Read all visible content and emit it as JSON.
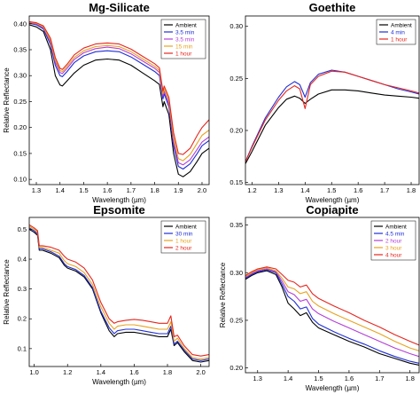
{
  "chart_data": [
    {
      "type": "line",
      "title": "Mg-Silicate",
      "xlabel": "Wavelength (µm)",
      "ylabel": "Relative Reflectance",
      "xlim": [
        1.27,
        2.03
      ],
      "ylim": [
        0.09,
        0.415
      ],
      "xticks": [
        1.3,
        1.4,
        1.5,
        1.6,
        1.7,
        1.8,
        1.9,
        2.0
      ],
      "xtick_labels": [
        "1.3",
        "1.4",
        "1.5",
        "1.6",
        "1.7",
        "1.8",
        "1.9",
        "2.0"
      ],
      "yticks": [
        0.1,
        0.15,
        0.2,
        0.25,
        0.3,
        0.35,
        0.4
      ],
      "ytick_labels": [
        "0.10",
        "0.15",
        "0.20",
        "0.25",
        "0.30",
        "0.35",
        "0.40"
      ],
      "legend_position": "top-right",
      "series": [
        {
          "name": "Ambient",
          "color": "#000000",
          "x": [
            1.27,
            1.3,
            1.33,
            1.36,
            1.38,
            1.4,
            1.41,
            1.43,
            1.46,
            1.5,
            1.55,
            1.6,
            1.65,
            1.7,
            1.75,
            1.8,
            1.82,
            1.835,
            1.84,
            1.86,
            1.88,
            1.9,
            1.92,
            1.95,
            1.98,
            2.0,
            2.03
          ],
          "y": [
            0.398,
            0.394,
            0.385,
            0.35,
            0.3,
            0.282,
            0.28,
            0.29,
            0.305,
            0.32,
            0.33,
            0.332,
            0.33,
            0.32,
            0.305,
            0.29,
            0.283,
            0.24,
            0.25,
            0.225,
            0.15,
            0.11,
            0.105,
            0.115,
            0.135,
            0.15,
            0.16
          ]
        },
        {
          "name": "3.5 min",
          "color": "#1f2fd6",
          "x": [
            1.27,
            1.3,
            1.33,
            1.36,
            1.38,
            1.4,
            1.41,
            1.43,
            1.46,
            1.5,
            1.55,
            1.6,
            1.65,
            1.7,
            1.75,
            1.8,
            1.82,
            1.835,
            1.84,
            1.86,
            1.88,
            1.9,
            1.92,
            1.95,
            1.98,
            2.0,
            2.03
          ],
          "y": [
            0.401,
            0.398,
            0.39,
            0.36,
            0.32,
            0.3,
            0.298,
            0.308,
            0.325,
            0.338,
            0.346,
            0.348,
            0.346,
            0.336,
            0.322,
            0.308,
            0.3,
            0.255,
            0.265,
            0.24,
            0.165,
            0.125,
            0.12,
            0.13,
            0.15,
            0.165,
            0.175
          ]
        },
        {
          "name": "3.5 min",
          "color": "#b23fd8",
          "x": [
            1.27,
            1.3,
            1.33,
            1.36,
            1.38,
            1.4,
            1.41,
            1.43,
            1.46,
            1.5,
            1.55,
            1.6,
            1.65,
            1.7,
            1.75,
            1.8,
            1.82,
            1.835,
            1.84,
            1.86,
            1.88,
            1.9,
            1.92,
            1.95,
            1.98,
            2.0,
            2.03
          ],
          "y": [
            0.402,
            0.4,
            0.392,
            0.365,
            0.326,
            0.306,
            0.304,
            0.314,
            0.331,
            0.344,
            0.352,
            0.355,
            0.352,
            0.342,
            0.328,
            0.314,
            0.306,
            0.26,
            0.27,
            0.246,
            0.172,
            0.132,
            0.128,
            0.138,
            0.158,
            0.172,
            0.182
          ]
        },
        {
          "name": "15 min",
          "color": "#e8a21f",
          "x": [
            1.27,
            1.3,
            1.33,
            1.36,
            1.38,
            1.4,
            1.41,
            1.43,
            1.46,
            1.5,
            1.55,
            1.6,
            1.65,
            1.7,
            1.75,
            1.8,
            1.82,
            1.835,
            1.84,
            1.86,
            1.88,
            1.9,
            1.92,
            1.95,
            1.98,
            2.0,
            2.03
          ],
          "y": [
            0.403,
            0.401,
            0.394,
            0.368,
            0.33,
            0.31,
            0.308,
            0.318,
            0.335,
            0.348,
            0.356,
            0.358,
            0.356,
            0.346,
            0.332,
            0.318,
            0.31,
            0.265,
            0.275,
            0.252,
            0.18,
            0.14,
            0.136,
            0.148,
            0.17,
            0.185,
            0.195
          ]
        },
        {
          "name": "1 hour",
          "color": "#e5261d",
          "x": [
            1.27,
            1.3,
            1.33,
            1.36,
            1.38,
            1.4,
            1.41,
            1.43,
            1.46,
            1.5,
            1.55,
            1.6,
            1.65,
            1.7,
            1.75,
            1.8,
            1.82,
            1.835,
            1.84,
            1.86,
            1.88,
            1.9,
            1.92,
            1.95,
            1.98,
            2.0,
            2.03
          ],
          "y": [
            0.404,
            0.402,
            0.396,
            0.372,
            0.335,
            0.314,
            0.312,
            0.322,
            0.34,
            0.353,
            0.361,
            0.363,
            0.361,
            0.351,
            0.337,
            0.323,
            0.315,
            0.27,
            0.28,
            0.258,
            0.19,
            0.15,
            0.148,
            0.16,
            0.185,
            0.2,
            0.215
          ]
        }
      ]
    },
    {
      "type": "line",
      "title": "Goethite",
      "xlabel": "Wavelength (µm)",
      "ylabel": "",
      "xlim": [
        1.175,
        1.83
      ],
      "ylim": [
        0.148,
        0.31
      ],
      "xticks": [
        1.2,
        1.3,
        1.4,
        1.5,
        1.6,
        1.7,
        1.8
      ],
      "xtick_labels": [
        "1.2",
        "1.3",
        "1.4",
        "1.5",
        "1.6",
        "1.7",
        "1.8"
      ],
      "yticks": [
        0.15,
        0.2,
        0.25,
        0.3
      ],
      "ytick_labels": [
        "0.15",
        "0.20",
        "0.25",
        "0.30"
      ],
      "legend_position": "top-right",
      "series": [
        {
          "name": "Ambient",
          "color": "#000000",
          "x": [
            1.175,
            1.2,
            1.25,
            1.3,
            1.33,
            1.36,
            1.38,
            1.4,
            1.42,
            1.45,
            1.5,
            1.55,
            1.6,
            1.65,
            1.7,
            1.75,
            1.8,
            1.83
          ],
          "y": [
            0.168,
            0.18,
            0.205,
            0.222,
            0.23,
            0.233,
            0.231,
            0.226,
            0.23,
            0.235,
            0.239,
            0.239,
            0.238,
            0.236,
            0.234,
            0.233,
            0.232,
            0.231
          ]
        },
        {
          "name": "4 min",
          "color": "#1f2fd6",
          "x": [
            1.175,
            1.2,
            1.25,
            1.3,
            1.33,
            1.36,
            1.38,
            1.4,
            1.42,
            1.45,
            1.5,
            1.55,
            1.6,
            1.65,
            1.7,
            1.75,
            1.8,
            1.83
          ],
          "y": [
            0.17,
            0.185,
            0.212,
            0.232,
            0.242,
            0.247,
            0.244,
            0.232,
            0.246,
            0.254,
            0.258,
            0.256,
            0.252,
            0.248,
            0.244,
            0.24,
            0.237,
            0.235
          ]
        },
        {
          "name": "1 hour",
          "color": "#e5261d",
          "x": [
            1.175,
            1.2,
            1.25,
            1.3,
            1.33,
            1.36,
            1.38,
            1.4,
            1.42,
            1.45,
            1.5,
            1.55,
            1.6,
            1.65,
            1.7,
            1.75,
            1.8,
            1.83
          ],
          "y": [
            0.17,
            0.184,
            0.21,
            0.229,
            0.238,
            0.243,
            0.24,
            0.221,
            0.244,
            0.252,
            0.257,
            0.256,
            0.252,
            0.248,
            0.244,
            0.241,
            0.238,
            0.236
          ]
        }
      ]
    },
    {
      "type": "line",
      "title": "Epsomite",
      "xlabel": "Wavelength (µm)",
      "ylabel": "Relative Reflectance",
      "xlim": [
        0.97,
        2.05
      ],
      "ylim": [
        0.04,
        0.54
      ],
      "xticks": [
        1.0,
        1.2,
        1.4,
        1.6,
        1.8,
        2.0
      ],
      "xtick_labels": [
        "1.0",
        "1.2",
        "1.4",
        "1.6",
        "1.8",
        "2.0"
      ],
      "yticks": [
        0.1,
        0.2,
        0.3,
        0.4,
        0.5
      ],
      "ytick_labels": [
        "0.1",
        "0.2",
        "0.3",
        "0.4",
        "0.5"
      ],
      "legend_position": "top-right",
      "series": [
        {
          "name": "Ambient",
          "color": "#000000",
          "x": [
            0.97,
            1.0,
            1.02,
            1.03,
            1.05,
            1.1,
            1.15,
            1.18,
            1.2,
            1.25,
            1.3,
            1.35,
            1.4,
            1.45,
            1.48,
            1.5,
            1.55,
            1.6,
            1.65,
            1.7,
            1.75,
            1.8,
            1.82,
            1.84,
            1.86,
            1.9,
            1.95,
            2.0,
            2.05
          ],
          "y": [
            0.5,
            0.49,
            0.48,
            0.43,
            0.43,
            0.42,
            0.405,
            0.38,
            0.37,
            0.36,
            0.34,
            0.3,
            0.22,
            0.16,
            0.14,
            0.15,
            0.155,
            0.155,
            0.15,
            0.145,
            0.14,
            0.14,
            0.165,
            0.11,
            0.12,
            0.09,
            0.06,
            0.055,
            0.06
          ]
        },
        {
          "name": "30 min",
          "color": "#1f2fd6",
          "x": [
            0.97,
            1.0,
            1.02,
            1.03,
            1.05,
            1.1,
            1.15,
            1.18,
            1.2,
            1.25,
            1.3,
            1.35,
            1.4,
            1.45,
            1.48,
            1.5,
            1.55,
            1.6,
            1.65,
            1.7,
            1.75,
            1.8,
            1.82,
            1.84,
            1.86,
            1.9,
            1.95,
            2.0,
            2.05
          ],
          "y": [
            0.505,
            0.495,
            0.485,
            0.435,
            0.435,
            0.425,
            0.41,
            0.385,
            0.375,
            0.365,
            0.345,
            0.305,
            0.225,
            0.17,
            0.15,
            0.16,
            0.165,
            0.165,
            0.16,
            0.155,
            0.15,
            0.15,
            0.175,
            0.115,
            0.125,
            0.095,
            0.065,
            0.06,
            0.065
          ]
        },
        {
          "name": "1 hour",
          "color": "#e8a21f",
          "x": [
            0.97,
            1.0,
            1.02,
            1.03,
            1.05,
            1.1,
            1.15,
            1.18,
            1.2,
            1.25,
            1.3,
            1.35,
            1.4,
            1.45,
            1.48,
            1.5,
            1.55,
            1.6,
            1.65,
            1.7,
            1.75,
            1.8,
            1.82,
            1.84,
            1.86,
            1.9,
            1.95,
            2.0,
            2.05
          ],
          "y": [
            0.51,
            0.5,
            0.49,
            0.44,
            0.44,
            0.43,
            0.42,
            0.395,
            0.385,
            0.375,
            0.355,
            0.315,
            0.24,
            0.185,
            0.165,
            0.175,
            0.18,
            0.18,
            0.175,
            0.17,
            0.165,
            0.165,
            0.19,
            0.125,
            0.135,
            0.1,
            0.07,
            0.065,
            0.07
          ]
        },
        {
          "name": "2 hour",
          "color": "#e5261d",
          "x": [
            0.97,
            1.0,
            1.02,
            1.03,
            1.05,
            1.1,
            1.15,
            1.18,
            1.2,
            1.25,
            1.3,
            1.35,
            1.4,
            1.45,
            1.48,
            1.5,
            1.55,
            1.6,
            1.65,
            1.7,
            1.75,
            1.8,
            1.82,
            1.84,
            1.86,
            1.9,
            1.95,
            2.0,
            2.05
          ],
          "y": [
            0.515,
            0.505,
            0.495,
            0.445,
            0.445,
            0.44,
            0.43,
            0.41,
            0.4,
            0.39,
            0.37,
            0.33,
            0.255,
            0.2,
            0.185,
            0.19,
            0.195,
            0.198,
            0.195,
            0.19,
            0.185,
            0.185,
            0.21,
            0.14,
            0.145,
            0.11,
            0.08,
            0.075,
            0.08
          ]
        }
      ]
    },
    {
      "type": "line",
      "title": "Copiapite",
      "xlabel": "Wavelength (µm)",
      "ylabel": "Relative Reflectance",
      "xlim": [
        1.26,
        1.83
      ],
      "ylim": [
        0.195,
        0.358
      ],
      "xticks": [
        1.3,
        1.4,
        1.5,
        1.6,
        1.7,
        1.8
      ],
      "xtick_labels": [
        "1.3",
        "1.4",
        "1.5",
        "1.6",
        "1.7",
        "1.8"
      ],
      "yticks": [
        0.2,
        0.25,
        0.3,
        0.35
      ],
      "ytick_labels": [
        "0.20",
        "0.25",
        "0.30",
        "0.35"
      ],
      "legend_position": "top-right",
      "series": [
        {
          "name": "Ambient",
          "color": "#000000",
          "x": [
            1.26,
            1.28,
            1.3,
            1.33,
            1.36,
            1.38,
            1.4,
            1.42,
            1.44,
            1.46,
            1.48,
            1.5,
            1.55,
            1.6,
            1.65,
            1.7,
            1.75,
            1.8,
            1.83
          ],
          "y": [
            0.293,
            0.297,
            0.3,
            0.302,
            0.298,
            0.285,
            0.268,
            0.262,
            0.255,
            0.258,
            0.248,
            0.242,
            0.235,
            0.228,
            0.222,
            0.215,
            0.21,
            0.205,
            0.203
          ]
        },
        {
          "name": "4.5 min",
          "color": "#1f2fd6",
          "x": [
            1.26,
            1.28,
            1.3,
            1.33,
            1.36,
            1.38,
            1.4,
            1.42,
            1.44,
            1.46,
            1.48,
            1.5,
            1.55,
            1.6,
            1.65,
            1.7,
            1.75,
            1.8,
            1.83
          ],
          "y": [
            0.294,
            0.298,
            0.301,
            0.303,
            0.3,
            0.288,
            0.275,
            0.27,
            0.262,
            0.264,
            0.252,
            0.246,
            0.238,
            0.231,
            0.225,
            0.218,
            0.212,
            0.207,
            0.205
          ]
        },
        {
          "name": "2 hour",
          "color": "#b23fd8",
          "x": [
            1.26,
            1.28,
            1.3,
            1.33,
            1.36,
            1.38,
            1.4,
            1.42,
            1.44,
            1.46,
            1.48,
            1.5,
            1.55,
            1.6,
            1.65,
            1.7,
            1.75,
            1.8,
            1.83
          ],
          "y": [
            0.295,
            0.299,
            0.302,
            0.304,
            0.301,
            0.291,
            0.28,
            0.277,
            0.27,
            0.272,
            0.262,
            0.257,
            0.249,
            0.242,
            0.235,
            0.228,
            0.221,
            0.215,
            0.212
          ]
        },
        {
          "name": "3 hour",
          "color": "#e8a21f",
          "x": [
            1.26,
            1.28,
            1.3,
            1.33,
            1.36,
            1.38,
            1.4,
            1.42,
            1.44,
            1.46,
            1.48,
            1.5,
            1.55,
            1.6,
            1.65,
            1.7,
            1.75,
            1.8,
            1.83
          ],
          "y": [
            0.296,
            0.3,
            0.303,
            0.305,
            0.302,
            0.294,
            0.285,
            0.283,
            0.278,
            0.28,
            0.27,
            0.265,
            0.257,
            0.25,
            0.243,
            0.236,
            0.228,
            0.221,
            0.218
          ]
        },
        {
          "name": "4 hour",
          "color": "#e5261d",
          "x": [
            1.26,
            1.28,
            1.3,
            1.33,
            1.36,
            1.38,
            1.4,
            1.42,
            1.44,
            1.46,
            1.48,
            1.5,
            1.55,
            1.6,
            1.65,
            1.7,
            1.75,
            1.8,
            1.83
          ],
          "y": [
            0.297,
            0.301,
            0.304,
            0.306,
            0.304,
            0.298,
            0.292,
            0.29,
            0.285,
            0.287,
            0.278,
            0.273,
            0.265,
            0.258,
            0.25,
            0.243,
            0.235,
            0.228,
            0.224
          ]
        }
      ]
    }
  ]
}
